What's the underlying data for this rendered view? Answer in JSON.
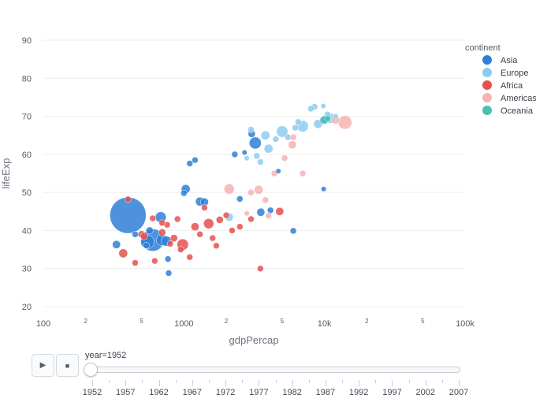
{
  "chart_data": {
    "type": "scatter",
    "title": "",
    "xlabel": "gdpPercap",
    "ylabel": "lifeExp",
    "x_scale": "log",
    "xlim": [
      100,
      100000
    ],
    "ylim": [
      20,
      90
    ],
    "x_major_ticks": [
      {
        "value": 100,
        "label": "100"
      },
      {
        "value": 1000,
        "label": "1000"
      },
      {
        "value": 10000,
        "label": "10k"
      },
      {
        "value": 100000,
        "label": "100k"
      }
    ],
    "x_minor_ticks": [
      {
        "value": 200,
        "label": "2"
      },
      {
        "value": 500,
        "label": "5"
      },
      {
        "value": 2000,
        "label": "2"
      },
      {
        "value": 5000,
        "label": "5"
      },
      {
        "value": 20000,
        "label": "2"
      },
      {
        "value": 50000,
        "label": "5"
      }
    ],
    "y_ticks": [
      20,
      30,
      40,
      50,
      60,
      70,
      80,
      90
    ],
    "grid": true,
    "legend": {
      "title": "continent",
      "position": "top-right"
    },
    "series": [
      {
        "name": "Asia",
        "color": "#2f7fd6",
        "points": [
          {
            "x": 779,
            "y": 28.8,
            "size": 3
          },
          {
            "x": 600,
            "y": 37.5,
            "size": 38
          },
          {
            "x": 400,
            "y": 44,
            "size": 100
          },
          {
            "x": 550,
            "y": 37.0,
            "size": 14
          },
          {
            "x": 700,
            "y": 37.5,
            "size": 10
          },
          {
            "x": 750,
            "y": 37.2,
            "size": 8
          },
          {
            "x": 684,
            "y": 43.5,
            "size": 9
          },
          {
            "x": 331,
            "y": 36.3,
            "size": 5
          },
          {
            "x": 9867,
            "y": 50.9,
            "size": 2
          },
          {
            "x": 1030,
            "y": 50.9,
            "size": 6
          },
          {
            "x": 3035,
            "y": 65.4,
            "size": 4
          },
          {
            "x": 3217,
            "y": 63.0,
            "size": 11
          },
          {
            "x": 4128,
            "y": 45.3,
            "size": 3
          },
          {
            "x": 3523,
            "y": 44.8,
            "size": 5
          },
          {
            "x": 1400,
            "y": 47.5,
            "size": 5
          },
          {
            "x": 2500,
            "y": 48.3,
            "size": 3
          },
          {
            "x": 1100,
            "y": 57.6,
            "size": 3
          },
          {
            "x": 1200,
            "y": 58.5,
            "size": 3
          },
          {
            "x": 6000,
            "y": 39.9,
            "size": 3
          },
          {
            "x": 570,
            "y": 40.0,
            "size": 4
          },
          {
            "x": 1000,
            "y": 49.8,
            "size": 3
          },
          {
            "x": 1300,
            "y": 47.6,
            "size": 6
          },
          {
            "x": 540,
            "y": 36.1,
            "size": 3
          },
          {
            "x": 450,
            "y": 39.0,
            "size": 3
          },
          {
            "x": 9900,
            "y": 69.0,
            "size": 5
          },
          {
            "x": 770,
            "y": 32.5,
            "size": 3
          },
          {
            "x": 2300,
            "y": 60.0,
            "size": 3
          },
          {
            "x": 2700,
            "y": 60.5,
            "size": 2
          },
          {
            "x": 4700,
            "y": 55.6,
            "size": 2
          }
        ]
      },
      {
        "name": "Europe",
        "color": "#8ecbf2",
        "points": [
          {
            "x": 7000,
            "y": 67.4,
            "size": 10
          },
          {
            "x": 5000,
            "y": 66.0,
            "size": 10
          },
          {
            "x": 9000,
            "y": 68.0,
            "size": 6
          },
          {
            "x": 3800,
            "y": 65.0,
            "size": 6
          },
          {
            "x": 11000,
            "y": 69.5,
            "size": 8
          },
          {
            "x": 8500,
            "y": 72.5,
            "size": 3
          },
          {
            "x": 8000,
            "y": 72.0,
            "size": 3
          },
          {
            "x": 9800,
            "y": 72.7,
            "size": 2
          },
          {
            "x": 6500,
            "y": 68.5,
            "size": 3
          },
          {
            "x": 5500,
            "y": 64.5,
            "size": 3
          },
          {
            "x": 4000,
            "y": 61.5,
            "size": 6
          },
          {
            "x": 3300,
            "y": 59.6,
            "size": 3
          },
          {
            "x": 2800,
            "y": 59.0,
            "size": 2
          },
          {
            "x": 3000,
            "y": 66.5,
            "size": 3
          },
          {
            "x": 2100,
            "y": 43.5,
            "size": 5
          },
          {
            "x": 12000,
            "y": 70.0,
            "size": 2
          },
          {
            "x": 10500,
            "y": 70.5,
            "size": 3
          },
          {
            "x": 4500,
            "y": 64.0,
            "size": 3
          },
          {
            "x": 6200,
            "y": 67.0,
            "size": 3
          },
          {
            "x": 3500,
            "y": 58.0,
            "size": 3
          }
        ]
      },
      {
        "name": "Africa",
        "color": "#e5514f",
        "points": [
          {
            "x": 800,
            "y": 36.5,
            "size": 3
          },
          {
            "x": 980,
            "y": 36.3,
            "size": 10
          },
          {
            "x": 1500,
            "y": 41.8,
            "size": 8
          },
          {
            "x": 1200,
            "y": 41.0,
            "size": 5
          },
          {
            "x": 500,
            "y": 39.0,
            "size": 4
          },
          {
            "x": 370,
            "y": 34.0,
            "size": 6
          },
          {
            "x": 400,
            "y": 48.2,
            "size": 3
          },
          {
            "x": 700,
            "y": 39.5,
            "size": 4
          },
          {
            "x": 900,
            "y": 43.0,
            "size": 3
          },
          {
            "x": 1800,
            "y": 42.8,
            "size": 4
          },
          {
            "x": 2000,
            "y": 44.0,
            "size": 3
          },
          {
            "x": 2500,
            "y": 41.0,
            "size": 3
          },
          {
            "x": 3500,
            "y": 30.0,
            "size": 3
          },
          {
            "x": 4800,
            "y": 45.0,
            "size": 5
          },
          {
            "x": 760,
            "y": 41.5,
            "size": 3
          },
          {
            "x": 600,
            "y": 43.2,
            "size": 3
          },
          {
            "x": 1100,
            "y": 33.0,
            "size": 3
          },
          {
            "x": 620,
            "y": 32.0,
            "size": 3
          },
          {
            "x": 450,
            "y": 31.5,
            "size": 3
          },
          {
            "x": 520,
            "y": 38.5,
            "size": 4
          },
          {
            "x": 1300,
            "y": 39.0,
            "size": 3
          },
          {
            "x": 1600,
            "y": 38.0,
            "size": 3
          },
          {
            "x": 3000,
            "y": 43.0,
            "size": 3
          },
          {
            "x": 850,
            "y": 38.0,
            "size": 4
          },
          {
            "x": 700,
            "y": 42.0,
            "size": 3
          },
          {
            "x": 1400,
            "y": 46.0,
            "size": 3
          },
          {
            "x": 950,
            "y": 35.0,
            "size": 3
          },
          {
            "x": 2200,
            "y": 40.0,
            "size": 3
          },
          {
            "x": 1700,
            "y": 36.0,
            "size": 3
          }
        ]
      },
      {
        "name": "Americas",
        "color": "#f7b2b2",
        "points": [
          {
            "x": 14000,
            "y": 68.4,
            "size": 14
          },
          {
            "x": 12000,
            "y": 69.0,
            "size": 5
          },
          {
            "x": 2100,
            "y": 50.9,
            "size": 8
          },
          {
            "x": 3400,
            "y": 50.7,
            "size": 6
          },
          {
            "x": 5900,
            "y": 62.5,
            "size": 5
          },
          {
            "x": 4400,
            "y": 55.0,
            "size": 3
          },
          {
            "x": 7000,
            "y": 55.0,
            "size": 3
          },
          {
            "x": 4000,
            "y": 43.9,
            "size": 3
          },
          {
            "x": 3800,
            "y": 48.0,
            "size": 3
          },
          {
            "x": 5200,
            "y": 59.0,
            "size": 3
          },
          {
            "x": 3000,
            "y": 50.0,
            "size": 3
          },
          {
            "x": 2800,
            "y": 44.5,
            "size": 2
          },
          {
            "x": 6000,
            "y": 64.5,
            "size": 3
          }
        ]
      },
      {
        "name": "Oceania",
        "color": "#4cbfae",
        "points": [
          {
            "x": 10039,
            "y": 69.1,
            "size": 5
          },
          {
            "x": 10556,
            "y": 69.4,
            "size": 3
          }
        ]
      }
    ]
  },
  "slider": {
    "label": "year=1952",
    "current": 1952,
    "ticks": [
      "1952",
      "1957",
      "1962",
      "1967",
      "1972",
      "1977",
      "1982",
      "1987",
      "1992",
      "1997",
      "2002",
      "2007"
    ]
  },
  "controls": {
    "play_symbol": "▶",
    "stop_symbol": "■"
  }
}
